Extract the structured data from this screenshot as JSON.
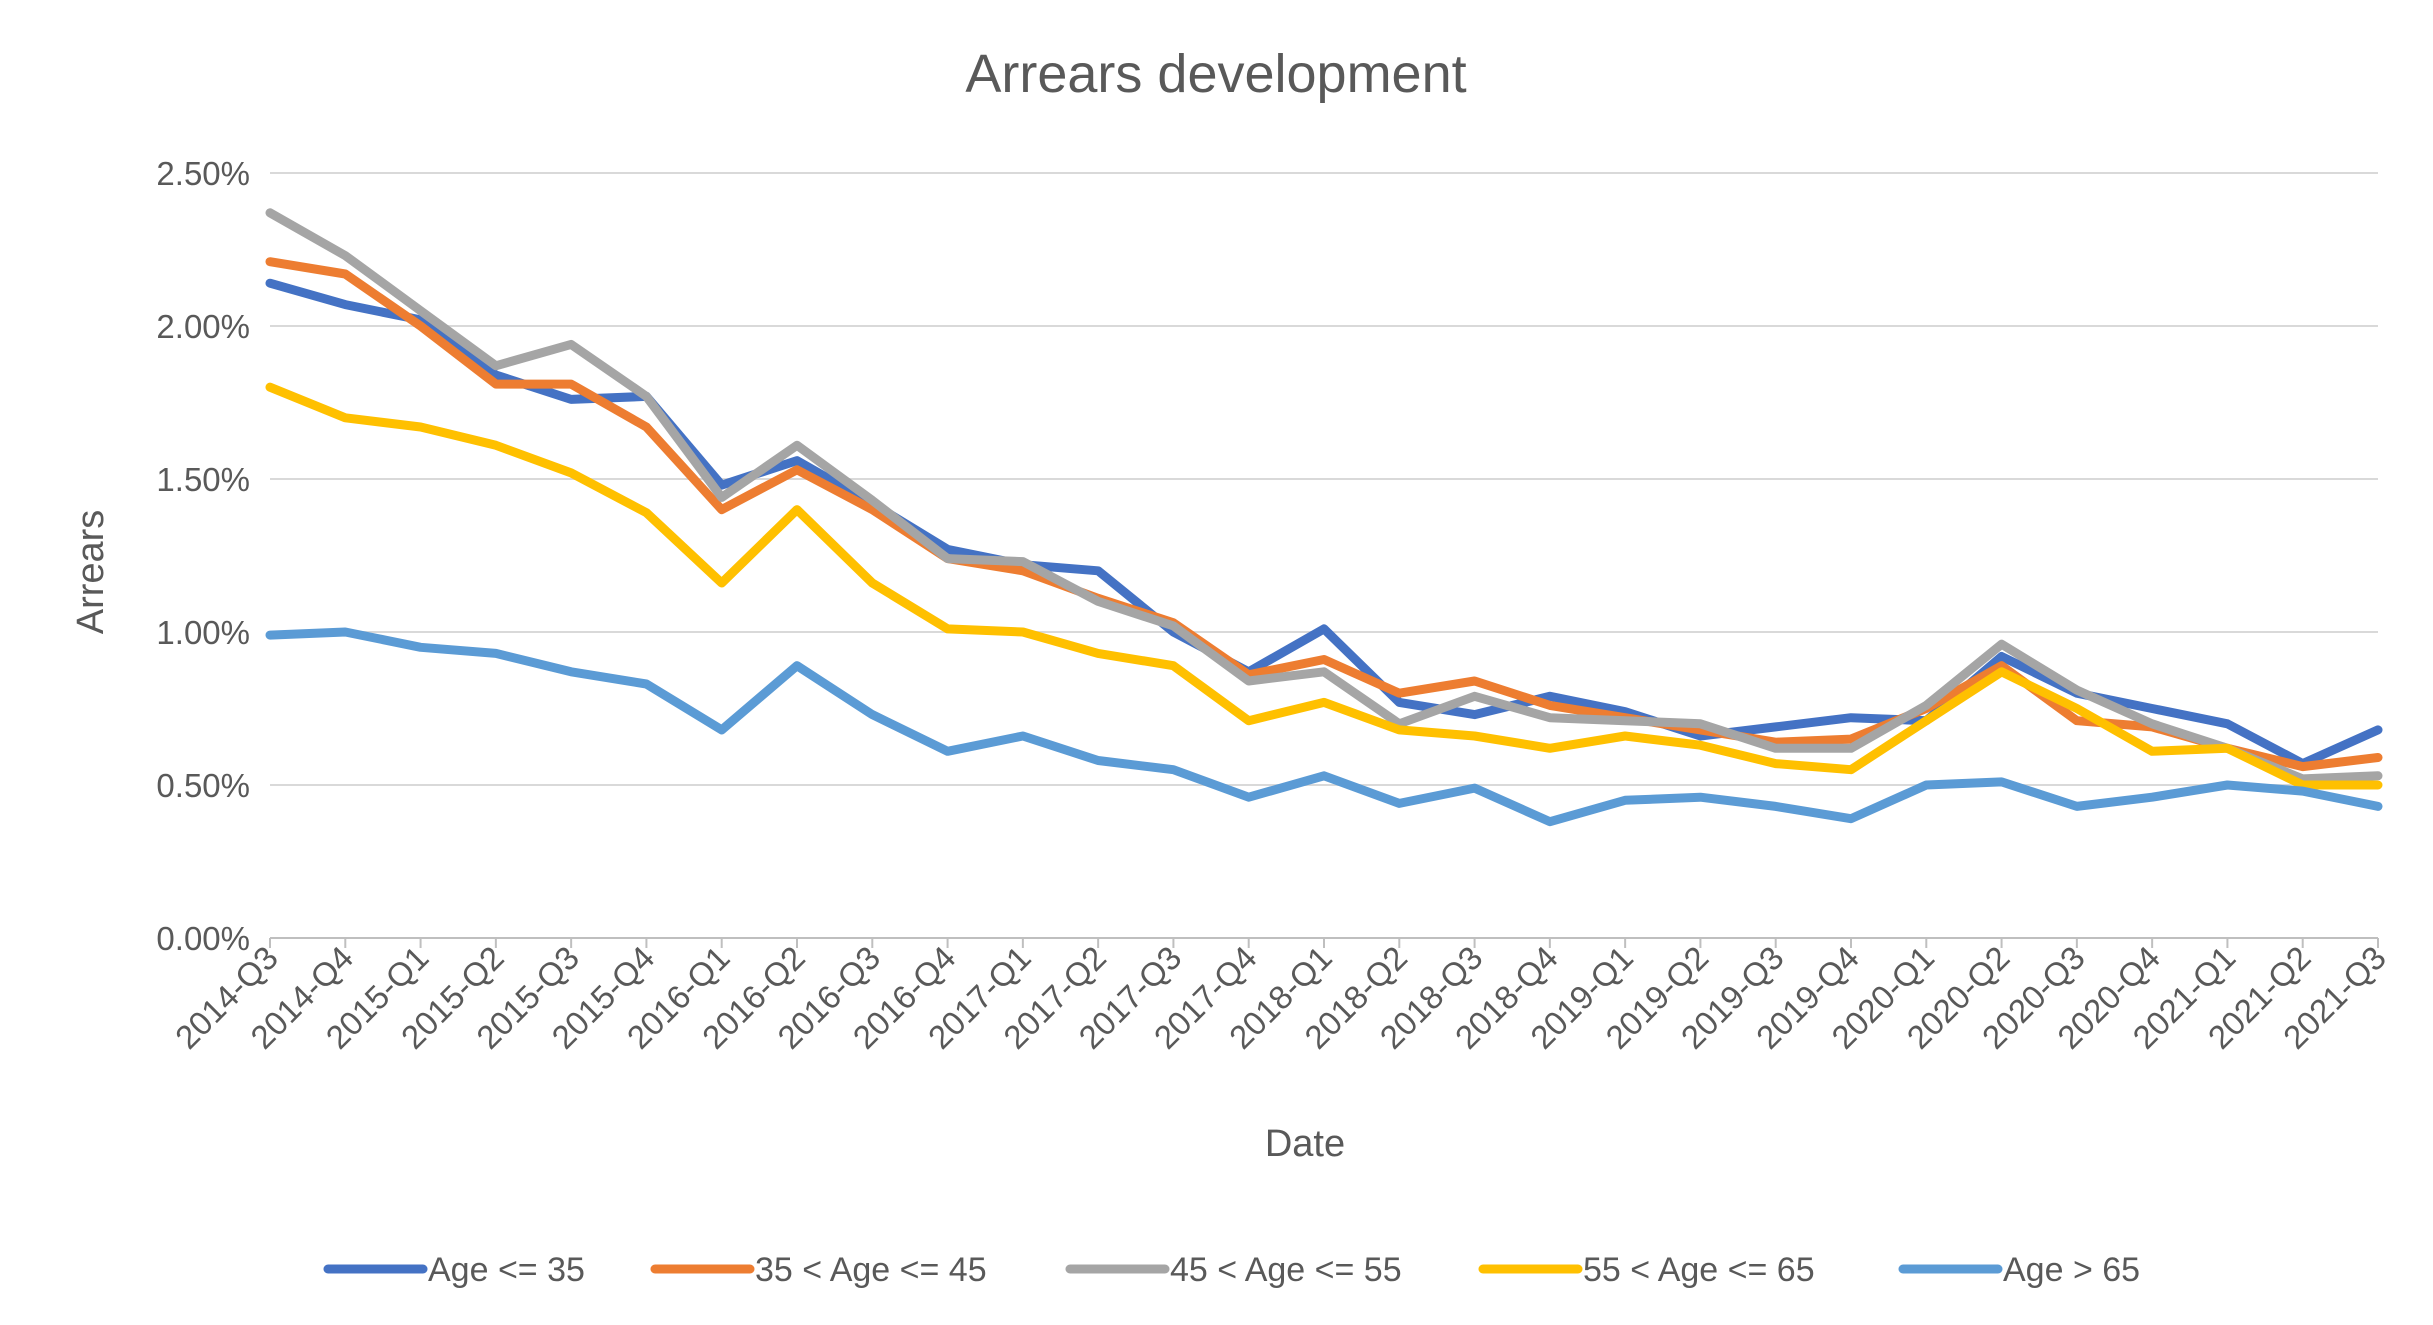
{
  "chart_data": {
    "type": "line",
    "title": "Arrears development",
    "xlabel": "Date",
    "ylabel": "Arrears",
    "ylim": [
      0,
      2.5
    ],
    "y_ticks": [
      "0.00%",
      "0.50%",
      "1.00%",
      "1.50%",
      "2.00%",
      "2.50%"
    ],
    "y_tick_values": [
      0,
      0.5,
      1.0,
      1.5,
      2.0,
      2.5
    ],
    "grid": true,
    "legend_position": "bottom",
    "categories": [
      "2014-Q3",
      "2014-Q4",
      "2015-Q1",
      "2015-Q2",
      "2015-Q3",
      "2015-Q4",
      "2016-Q1",
      "2016-Q2",
      "2016-Q3",
      "2016-Q4",
      "2017-Q1",
      "2017-Q2",
      "2017-Q3",
      "2017-Q4",
      "2018-Q1",
      "2018-Q2",
      "2018-Q3",
      "2018-Q4",
      "2019-Q1",
      "2019-Q2",
      "2019-Q3",
      "2019-Q4",
      "2020-Q1",
      "2020-Q2",
      "2020-Q3",
      "2020-Q4",
      "2021-Q1",
      "2021-Q2",
      "2021-Q3"
    ],
    "series": [
      {
        "name": "Age <= 35",
        "color": "#4472C4",
        "values": [
          2.14,
          2.07,
          2.02,
          1.84,
          1.76,
          1.77,
          1.48,
          1.56,
          1.42,
          1.27,
          1.22,
          1.2,
          1.0,
          0.87,
          1.01,
          0.77,
          0.73,
          0.79,
          0.74,
          0.66,
          0.69,
          0.72,
          0.71,
          0.92,
          0.8,
          0.75,
          0.7,
          0.57,
          0.68
        ]
      },
      {
        "name": "35 < Age <= 45",
        "color": "#ED7D31",
        "values": [
          2.21,
          2.17,
          2.0,
          1.81,
          1.81,
          1.67,
          1.4,
          1.53,
          1.4,
          1.24,
          1.2,
          1.11,
          1.03,
          0.86,
          0.91,
          0.8,
          0.84,
          0.76,
          0.72,
          0.68,
          0.64,
          0.65,
          0.75,
          0.89,
          0.71,
          0.69,
          0.62,
          0.56,
          0.59
        ]
      },
      {
        "name": "45 < Age <= 55",
        "color": "#A5A5A5",
        "values": [
          2.37,
          2.23,
          2.05,
          1.87,
          1.94,
          1.77,
          1.44,
          1.61,
          1.43,
          1.24,
          1.23,
          1.1,
          1.02,
          0.84,
          0.87,
          0.7,
          0.79,
          0.72,
          0.71,
          0.7,
          0.62,
          0.62,
          0.76,
          0.96,
          0.81,
          0.7,
          0.62,
          0.52,
          0.53
        ]
      },
      {
        "name": "55 < Age <= 65",
        "color": "#FFC000",
        "values": [
          1.8,
          1.7,
          1.67,
          1.61,
          1.52,
          1.39,
          1.16,
          1.4,
          1.16,
          1.01,
          1.0,
          0.93,
          0.89,
          0.71,
          0.77,
          0.68,
          0.66,
          0.62,
          0.66,
          0.63,
          0.57,
          0.55,
          0.71,
          0.87,
          0.75,
          0.61,
          0.62,
          0.5,
          0.5
        ]
      },
      {
        "name": "Age > 65",
        "color": "#5B9BD5",
        "values": [
          0.99,
          1.0,
          0.95,
          0.93,
          0.87,
          0.83,
          0.68,
          0.89,
          0.73,
          0.61,
          0.66,
          0.58,
          0.55,
          0.46,
          0.53,
          0.44,
          0.49,
          0.38,
          0.45,
          0.46,
          0.43,
          0.39,
          0.5,
          0.51,
          0.43,
          0.46,
          0.5,
          0.48,
          0.43
        ]
      }
    ]
  }
}
